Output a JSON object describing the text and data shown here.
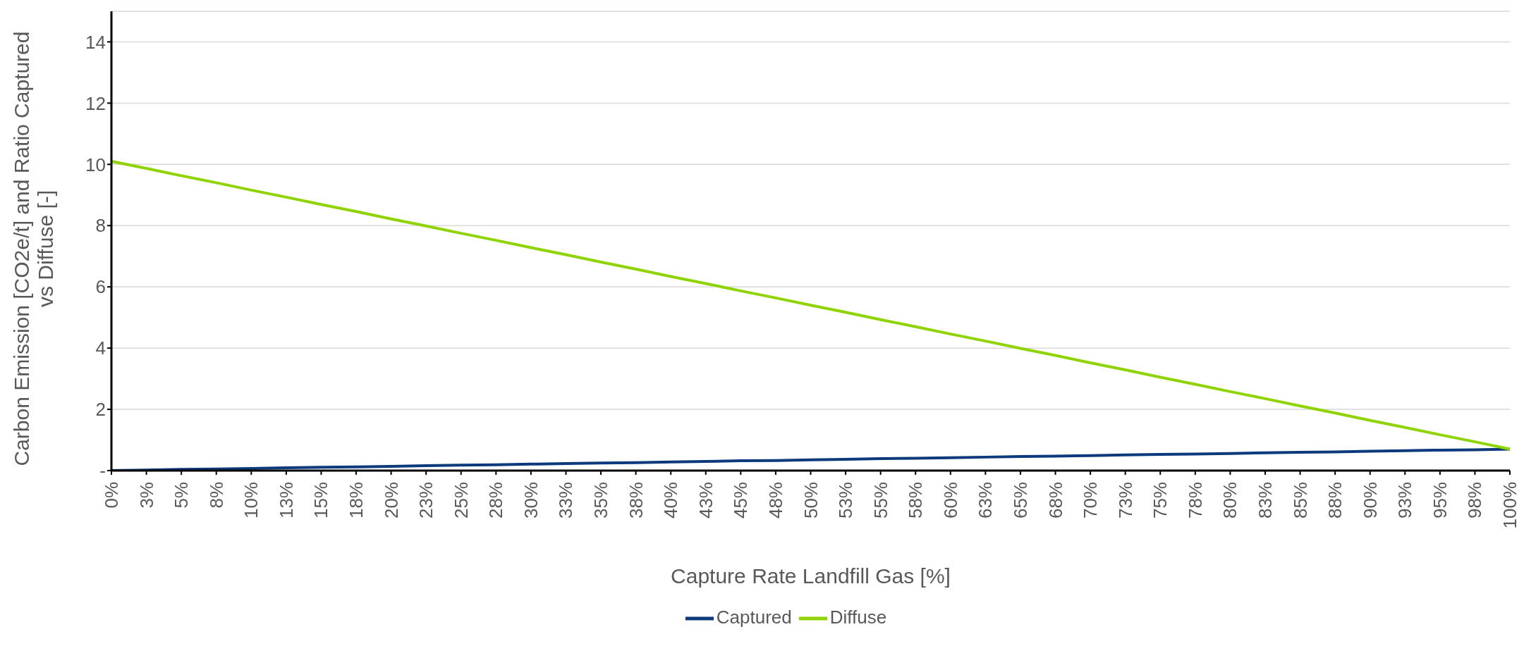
{
  "chart_data": {
    "type": "line",
    "xlabel": "Capture Rate Landfill Gas [%]",
    "ylabel": "Carbon Emission [CO2e/t] and Ratio Captured vs Diffuse [-]",
    "categories": [
      "0%",
      "3%",
      "5%",
      "8%",
      "10%",
      "13%",
      "15%",
      "18%",
      "20%",
      "23%",
      "25%",
      "28%",
      "30%",
      "33%",
      "35%",
      "38%",
      "40%",
      "43%",
      "45%",
      "48%",
      "50%",
      "53%",
      "55%",
      "58%",
      "60%",
      "63%",
      "65%",
      "68%",
      "70%",
      "73%",
      "75%",
      "78%",
      "80%",
      "83%",
      "85%",
      "88%",
      "90%",
      "93%",
      "95%",
      "98%",
      "100%"
    ],
    "series": [
      {
        "name": "Captured",
        "color": "#0c3a7d",
        "values": [
          0,
          0.02,
          0.04,
          0.05,
          0.07,
          0.09,
          0.11,
          0.12,
          0.14,
          0.16,
          0.18,
          0.19,
          0.21,
          0.23,
          0.25,
          0.26,
          0.28,
          0.3,
          0.32,
          0.33,
          0.35,
          0.37,
          0.39,
          0.4,
          0.42,
          0.44,
          0.46,
          0.47,
          0.49,
          0.51,
          0.53,
          0.54,
          0.56,
          0.58,
          0.6,
          0.61,
          0.63,
          0.65,
          0.67,
          0.68,
          0.7
        ]
      },
      {
        "name": "Diffuse",
        "color": "#8fd400",
        "values": [
          10.1,
          9.87,
          9.63,
          9.4,
          9.16,
          8.93,
          8.69,
          8.46,
          8.22,
          7.99,
          7.75,
          7.52,
          7.28,
          7.05,
          6.81,
          6.58,
          6.34,
          6.11,
          5.87,
          5.64,
          5.4,
          5.17,
          4.93,
          4.7,
          4.46,
          4.23,
          3.99,
          3.76,
          3.52,
          3.29,
          3.05,
          2.82,
          2.58,
          2.35,
          2.11,
          1.88,
          1.64,
          1.41,
          1.17,
          0.94,
          0.7
        ]
      }
    ],
    "ylim": [
      0,
      15
    ],
    "yticks": [
      {
        "value": 0,
        "label": "-"
      },
      2,
      4,
      6,
      8,
      10,
      12,
      14
    ],
    "grid": "y",
    "legend": "bottom",
    "marker": "none",
    "line_style": "solid"
  }
}
